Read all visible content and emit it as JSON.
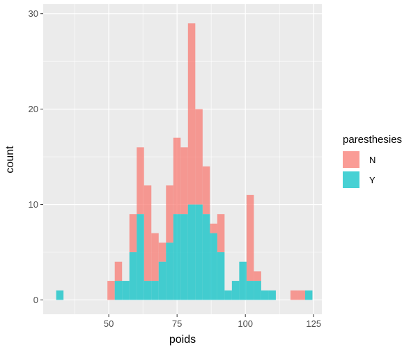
{
  "chart_data": {
    "type": "histogram",
    "title": "",
    "xlabel": "poids",
    "ylabel": "count",
    "xlim": [
      26,
      128
    ],
    "ylim": [
      -1.5,
      31
    ],
    "x_ticks": [
      50,
      75,
      100,
      125
    ],
    "y_ticks": [
      0,
      10,
      20,
      30
    ],
    "bin_width": 2.68,
    "grid": true,
    "legend": {
      "title": "paresthesies",
      "placement": "right"
    },
    "colors": {
      "N": "#f8766d",
      "Y": "#00bfc4",
      "panel": "#ebebeb",
      "grid": "#ffffff"
    },
    "bins": [
      {
        "x0": 30.75,
        "x1": 33.43,
        "N": 0,
        "Y": 1
      },
      {
        "x0": 49.51,
        "x1": 52.19,
        "N": 2,
        "Y": 0
      },
      {
        "x0": 52.19,
        "x1": 54.87,
        "N": 2,
        "Y": 2
      },
      {
        "x0": 54.87,
        "x1": 57.55,
        "N": 0,
        "Y": 2
      },
      {
        "x0": 57.55,
        "x1": 60.23,
        "N": 4,
        "Y": 5
      },
      {
        "x0": 60.23,
        "x1": 62.91,
        "N": 7,
        "Y": 9
      },
      {
        "x0": 62.91,
        "x1": 65.59,
        "N": 10,
        "Y": 2
      },
      {
        "x0": 65.59,
        "x1": 68.27,
        "N": 5,
        "Y": 2
      },
      {
        "x0": 68.27,
        "x1": 70.95,
        "N": 2,
        "Y": 4
      },
      {
        "x0": 70.95,
        "x1": 73.63,
        "N": 6,
        "Y": 6
      },
      {
        "x0": 73.63,
        "x1": 76.31,
        "N": 8,
        "Y": 9
      },
      {
        "x0": 76.31,
        "x1": 78.99,
        "N": 7,
        "Y": 9
      },
      {
        "x0": 78.99,
        "x1": 81.67,
        "N": 19,
        "Y": 10
      },
      {
        "x0": 81.67,
        "x1": 84.35,
        "N": 10,
        "Y": 10
      },
      {
        "x0": 84.35,
        "x1": 87.03,
        "N": 5,
        "Y": 9
      },
      {
        "x0": 87.03,
        "x1": 89.71,
        "N": 1,
        "Y": 7
      },
      {
        "x0": 89.71,
        "x1": 92.39,
        "N": 4,
        "Y": 5
      },
      {
        "x0": 92.39,
        "x1": 95.07,
        "N": 0,
        "Y": 1
      },
      {
        "x0": 95.07,
        "x1": 97.75,
        "N": 0,
        "Y": 2
      },
      {
        "x0": 97.75,
        "x1": 100.43,
        "N": 0,
        "Y": 4
      },
      {
        "x0": 100.43,
        "x1": 103.11,
        "N": 9,
        "Y": 2
      },
      {
        "x0": 103.11,
        "x1": 105.79,
        "N": 1,
        "Y": 2
      },
      {
        "x0": 105.79,
        "x1": 108.47,
        "N": 0,
        "Y": 1
      },
      {
        "x0": 108.47,
        "x1": 111.15,
        "N": 0,
        "Y": 1
      },
      {
        "x0": 116.51,
        "x1": 119.19,
        "N": 1,
        "Y": 0
      },
      {
        "x0": 119.19,
        "x1": 121.87,
        "N": 1,
        "Y": 0
      },
      {
        "x0": 121.87,
        "x1": 124.55,
        "N": 0,
        "Y": 1
      }
    ]
  }
}
